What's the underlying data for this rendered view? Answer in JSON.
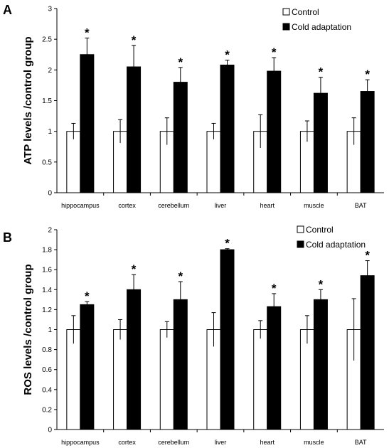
{
  "chart_data": [
    {
      "type": "bar",
      "panel_label": "A",
      "ylabel": "ATP levels /control group",
      "xlabel": "",
      "ylim": [
        0,
        3
      ],
      "yticks": [
        "0",
        "0.5",
        "1",
        "1.5",
        "2",
        "2.5",
        "3"
      ],
      "ytick_values": [
        0,
        0.5,
        1,
        1.5,
        2,
        2.5,
        3
      ],
      "categories": [
        "hippocampus",
        "cortex",
        "cerebellum",
        "liver",
        "heart",
        "muscle",
        "BAT"
      ],
      "legend_position": "top-right",
      "grid": false,
      "significance_marker": "*",
      "series": [
        {
          "name": "Control",
          "color": "#ffffff",
          "values": [
            1,
            1,
            1,
            1,
            1,
            1,
            1
          ],
          "errors": [
            0.13,
            0.19,
            0.22,
            0.13,
            0.27,
            0.17,
            0.22
          ],
          "significant": [
            false,
            false,
            false,
            false,
            false,
            false,
            false
          ]
        },
        {
          "name": "Cold adaptation",
          "color": "#000000",
          "values": [
            2.25,
            2.05,
            1.8,
            2.08,
            1.98,
            1.62,
            1.65
          ],
          "errors": [
            0.27,
            0.35,
            0.24,
            0.08,
            0.22,
            0.26,
            0.19
          ],
          "significant": [
            true,
            true,
            true,
            true,
            true,
            true,
            true
          ]
        }
      ]
    },
    {
      "type": "bar",
      "panel_label": "B",
      "ylabel": "ROS levels /control group",
      "xlabel": "",
      "ylim": [
        0,
        2
      ],
      "yticks": [
        "0",
        "0.2",
        "0.4",
        "0.6",
        "0.8",
        "1",
        "1.2",
        "1.4",
        "1.6",
        "1.8",
        "2"
      ],
      "ytick_values": [
        0,
        0.2,
        0.4,
        0.6,
        0.8,
        1,
        1.2,
        1.4,
        1.6,
        1.8,
        2
      ],
      "categories": [
        "hippocampus",
        "cortex",
        "cerebellum",
        "liver",
        "heart",
        "muscle",
        "BAT"
      ],
      "legend_position": "top-right",
      "grid": false,
      "significance_marker": "*",
      "series": [
        {
          "name": "Control",
          "color": "#ffffff",
          "values": [
            1,
            1,
            1,
            1,
            1,
            1,
            1
          ],
          "errors": [
            0.14,
            0.1,
            0.08,
            0.17,
            0.09,
            0.14,
            0.31
          ],
          "significant": [
            false,
            false,
            false,
            false,
            false,
            false,
            false
          ]
        },
        {
          "name": "Cold adaptation",
          "color": "#000000",
          "values": [
            1.25,
            1.4,
            1.3,
            1.8,
            1.23,
            1.3,
            1.54
          ],
          "errors": [
            0.03,
            0.15,
            0.18,
            0.01,
            0.13,
            0.1,
            0.15
          ],
          "significant": [
            true,
            true,
            true,
            true,
            true,
            true,
            true
          ]
        }
      ]
    }
  ]
}
